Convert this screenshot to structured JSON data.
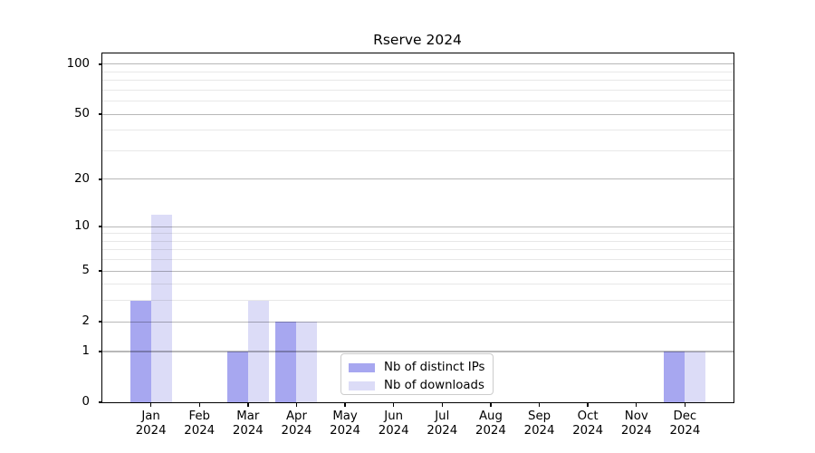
{
  "title": "Rserve 2024",
  "colors": {
    "distinct_ips": "#a7a7f0",
    "downloads": "#dcdcf7",
    "grid_major": "rgba(0,0,0,0.28)",
    "grid_minor": "rgba(0,0,0,0.09)",
    "axis": "#000000",
    "legend_border": "#cccccc"
  },
  "legend": {
    "items": [
      {
        "label": "Nb of distinct IPs",
        "color_key": "distinct_ips"
      },
      {
        "label": "Nb of downloads",
        "color_key": "downloads"
      }
    ]
  },
  "chart_data": {
    "type": "bar",
    "title": "Rserve 2024",
    "categories": [
      "Jan",
      "Feb",
      "Mar",
      "Apr",
      "May",
      "Jun",
      "Jul",
      "Aug",
      "Sep",
      "Oct",
      "Nov",
      "Dec"
    ],
    "category_year": "2024",
    "series": [
      {
        "name": "Nb of distinct IPs",
        "color_key": "distinct_ips",
        "values": [
          3,
          0,
          1,
          2,
          0,
          0,
          0,
          0,
          0,
          0,
          0,
          1
        ]
      },
      {
        "name": "Nb of downloads",
        "color_key": "downloads",
        "values": [
          12,
          0,
          3,
          2,
          0,
          0,
          0,
          0,
          0,
          0,
          0,
          1
        ]
      }
    ],
    "xlabel": "",
    "ylabel": "",
    "y_scale": "log1p",
    "y_major_ticks": [
      0,
      1,
      2,
      5,
      10,
      20,
      50,
      100
    ],
    "y_minor_ticks": [
      3,
      4,
      6,
      7,
      8,
      9,
      30,
      40,
      60,
      70,
      80,
      90
    ],
    "ylim": [
      0,
      116
    ],
    "grid": true,
    "grid_over_bars": true,
    "legend_position": "lower center"
  }
}
